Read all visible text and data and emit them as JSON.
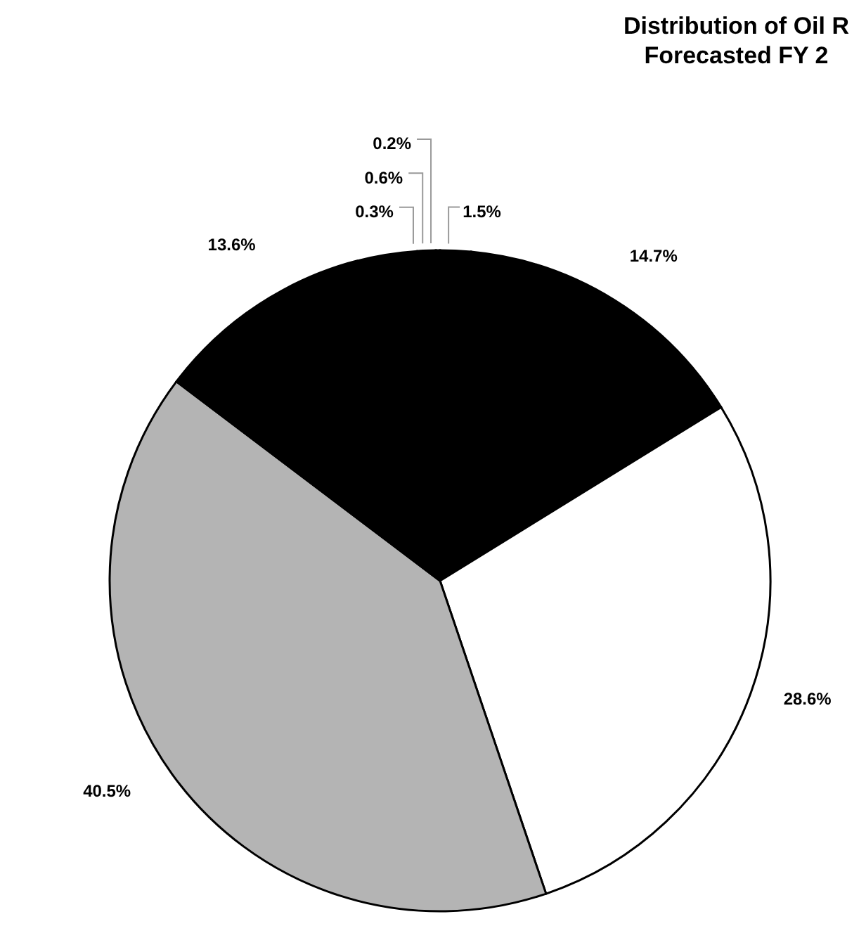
{
  "chart_data": {
    "type": "pie",
    "title": "Distribution of Oil R",
    "subtitle": "Forecasted FY 2",
    "categories": [
      null,
      null,
      null,
      null,
      null,
      null,
      null,
      null
    ],
    "values": [
      1.5,
      14.7,
      28.6,
      40.5,
      13.6,
      0.3,
      0.6,
      0.2
    ],
    "value_labels": [
      "1.5%",
      "14.7%",
      "28.6%",
      "40.5%",
      "13.6%",
      "0.3%",
      "0.6%",
      "0.2%"
    ],
    "colors": [
      "#000000",
      "#000000",
      "#ffffff",
      "#b4b4b4",
      "#000000",
      "#000000",
      "#000000",
      "#000000"
    ]
  }
}
